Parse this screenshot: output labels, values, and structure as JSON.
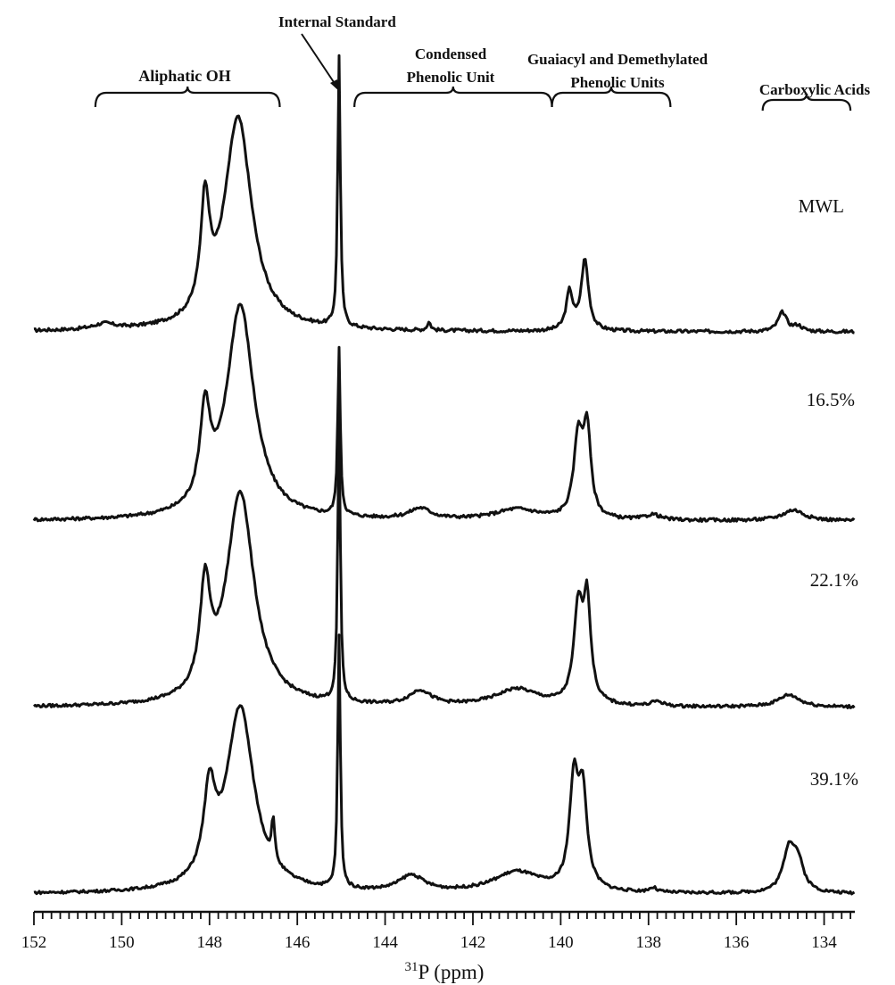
{
  "chart_data": {
    "type": "line",
    "xlabel_sup": "31",
    "xlabel": "P (ppm)",
    "x_reversed": true,
    "xlim": [
      152,
      133.3
    ],
    "x_ticks": [
      152,
      150,
      148,
      146,
      144,
      142,
      140,
      138,
      136,
      134
    ],
    "x_tick_labels": [
      "152",
      "150",
      "148",
      "146",
      "144",
      "142",
      "140",
      "138",
      "136",
      "134"
    ],
    "annotations": {
      "internal_standard": {
        "label": "Internal Standard",
        "x": 145.05
      },
      "regions": [
        {
          "label": "Aliphatic OH",
          "from": 150.6,
          "to": 146.4
        },
        {
          "label_line1": "Condensed",
          "label_line2": "Phenolic Unit",
          "from": 144.7,
          "to": 140.2
        },
        {
          "label_line1": "Guaiacyl and Demethylated",
          "label_line2": "Phenolic Units",
          "from": 140.2,
          "to": 137.5
        },
        {
          "label": "Carboxylic Acids",
          "from": 135.4,
          "to": 133.4
        }
      ]
    },
    "series": [
      {
        "name": "MWL",
        "peaks": [
          {
            "x": 150.4,
            "h": 0.02,
            "w": 0.3
          },
          {
            "x": 148.1,
            "h": 0.4,
            "w": 0.12
          },
          {
            "x": 147.35,
            "h": 0.78,
            "w": 0.38
          },
          {
            "x": 145.05,
            "h": 1.0,
            "w": 0.035
          },
          {
            "x": 143.0,
            "h": 0.03,
            "w": 0.05
          },
          {
            "x": 139.8,
            "h": 0.14,
            "w": 0.09
          },
          {
            "x": 139.45,
            "h": 0.26,
            "w": 0.1
          },
          {
            "x": 134.95,
            "h": 0.07,
            "w": 0.12
          },
          {
            "x": 134.6,
            "h": 0.02,
            "w": 0.12
          }
        ]
      },
      {
        "name": "16.5%",
        "peaks": [
          {
            "x": 148.1,
            "h": 0.34,
            "w": 0.14
          },
          {
            "x": 147.3,
            "h": 0.8,
            "w": 0.38
          },
          {
            "x": 145.05,
            "h": 0.62,
            "w": 0.035
          },
          {
            "x": 143.2,
            "h": 0.04,
            "w": 0.3
          },
          {
            "x": 141.0,
            "h": 0.04,
            "w": 0.6
          },
          {
            "x": 139.6,
            "h": 0.3,
            "w": 0.12
          },
          {
            "x": 139.4,
            "h": 0.32,
            "w": 0.1
          },
          {
            "x": 137.9,
            "h": 0.02,
            "w": 0.2
          },
          {
            "x": 134.7,
            "h": 0.04,
            "w": 0.3
          }
        ]
      },
      {
        "name": "22.1%",
        "peaks": [
          {
            "x": 148.1,
            "h": 0.42,
            "w": 0.14
          },
          {
            "x": 147.3,
            "h": 0.87,
            "w": 0.38
          },
          {
            "x": 145.05,
            "h": 1.15,
            "w": 0.035
          },
          {
            "x": 143.2,
            "h": 0.06,
            "w": 0.3
          },
          {
            "x": 141.0,
            "h": 0.07,
            "w": 0.6
          },
          {
            "x": 139.6,
            "h": 0.38,
            "w": 0.12
          },
          {
            "x": 139.4,
            "h": 0.4,
            "w": 0.1
          },
          {
            "x": 137.8,
            "h": 0.02,
            "w": 0.15
          },
          {
            "x": 134.8,
            "h": 0.05,
            "w": 0.3
          }
        ]
      },
      {
        "name": "39.1%",
        "peaks": [
          {
            "x": 148.0,
            "h": 0.36,
            "w": 0.16
          },
          {
            "x": 147.3,
            "h": 0.8,
            "w": 0.38
          },
          {
            "x": 146.55,
            "h": 0.18,
            "w": 0.04
          },
          {
            "x": 145.05,
            "h": 1.1,
            "w": 0.035
          },
          {
            "x": 143.4,
            "h": 0.07,
            "w": 0.35
          },
          {
            "x": 141.0,
            "h": 0.09,
            "w": 0.65
          },
          {
            "x": 139.7,
            "h": 0.45,
            "w": 0.12
          },
          {
            "x": 139.5,
            "h": 0.4,
            "w": 0.12
          },
          {
            "x": 137.9,
            "h": 0.02,
            "w": 0.1
          },
          {
            "x": 134.8,
            "h": 0.18,
            "w": 0.16
          },
          {
            "x": 134.6,
            "h": 0.12,
            "w": 0.16
          }
        ]
      }
    ]
  }
}
